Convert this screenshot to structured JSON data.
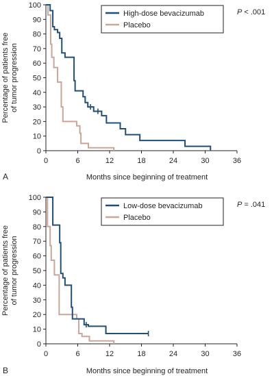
{
  "colors": {
    "primary": "#1f4e79",
    "placebo": "#c9a59a",
    "axis": "#231f20"
  },
  "chart_data": [
    {
      "type": "line",
      "panel_label": "A",
      "xlabel": "Months since beginning of treatment",
      "ylabel_lines": [
        "Percentage of patients free",
        "of tumor progression"
      ],
      "xlim": [
        0,
        36
      ],
      "ylim": [
        0,
        100
      ],
      "xticks": [
        "0",
        "6",
        "12",
        "18",
        "24",
        "30",
        "36"
      ],
      "yticks": [
        "0",
        "10",
        "20",
        "30",
        "40",
        "50",
        "60",
        "70",
        "80",
        "90",
        "100"
      ],
      "grid": false,
      "legend_position": "top-right",
      "pvalue_prefix": "P",
      "pvalue_suffix": " < .001",
      "series": [
        {
          "name": "High-dose bevacizumab",
          "color": "#1f4e79",
          "step": true,
          "points": [
            [
              0,
              100
            ],
            [
              0.8,
              100
            ],
            [
              0.8,
              96
            ],
            [
              1.3,
              96
            ],
            [
              1.3,
              85
            ],
            [
              1.6,
              85
            ],
            [
              1.6,
              83
            ],
            [
              2.2,
              83
            ],
            [
              2.2,
              81
            ],
            [
              2.6,
              81
            ],
            [
              2.6,
              77
            ],
            [
              3.0,
              77
            ],
            [
              3.0,
              67
            ],
            [
              3.6,
              67
            ],
            [
              3.6,
              64
            ],
            [
              5.3,
              64
            ],
            [
              5.3,
              48
            ],
            [
              5.5,
              48
            ],
            [
              5.5,
              41
            ],
            [
              7.0,
              41
            ],
            [
              7.0,
              37
            ],
            [
              7.4,
              37
            ],
            [
              7.4,
              33
            ],
            [
              7.9,
              33
            ],
            [
              7.9,
              30
            ],
            [
              9.0,
              30
            ],
            [
              9.0,
              27
            ],
            [
              10.5,
              27
            ],
            [
              10.5,
              24
            ],
            [
              11.4,
              24
            ],
            [
              11.4,
              19
            ],
            [
              14.0,
              19
            ],
            [
              14.0,
              15
            ],
            [
              15.0,
              15
            ],
            [
              15.0,
              11
            ],
            [
              17.7,
              11
            ],
            [
              17.7,
              7
            ],
            [
              26.2,
              7
            ],
            [
              26.2,
              3
            ],
            [
              31.0,
              3
            ],
            [
              31.0,
              0
            ]
          ],
          "censored": [
            [
              8.4,
              30
            ],
            [
              9.8,
              27
            ]
          ]
        },
        {
          "name": "Placebo",
          "color": "#c9a59a",
          "step": true,
          "points": [
            [
              0,
              100
            ],
            [
              0.4,
              100
            ],
            [
              0.4,
              93
            ],
            [
              0.9,
              93
            ],
            [
              0.9,
              73
            ],
            [
              1.1,
              73
            ],
            [
              1.1,
              64
            ],
            [
              1.5,
              64
            ],
            [
              1.5,
              57
            ],
            [
              2.2,
              57
            ],
            [
              2.2,
              47
            ],
            [
              2.9,
              47
            ],
            [
              2.9,
              30
            ],
            [
              3.2,
              30
            ],
            [
              3.2,
              20
            ],
            [
              5.8,
              20
            ],
            [
              5.8,
              17
            ],
            [
              6.4,
              17
            ],
            [
              6.4,
              12
            ],
            [
              6.6,
              12
            ],
            [
              6.6,
              5
            ],
            [
              8.0,
              5
            ],
            [
              8.0,
              2
            ],
            [
              12.8,
              2
            ],
            [
              12.8,
              0
            ]
          ],
          "censored": []
        }
      ]
    },
    {
      "type": "line",
      "panel_label": "B",
      "xlabel": "Months since beginning of treatment",
      "ylabel_lines": [
        "Percentage of patients free",
        "of tumor progression"
      ],
      "xlim": [
        0,
        36
      ],
      "ylim": [
        0,
        100
      ],
      "xticks": [
        "0",
        "6",
        "12",
        "18",
        "24",
        "30",
        "36"
      ],
      "yticks": [
        "0",
        "10",
        "20",
        "30",
        "40",
        "50",
        "60",
        "70",
        "80",
        "90",
        "100"
      ],
      "grid": false,
      "legend_position": "top-right",
      "pvalue_prefix": "P",
      "pvalue_suffix": " = .041",
      "series": [
        {
          "name": "Low-dose bevacizumab",
          "color": "#1f4e79",
          "step": true,
          "points": [
            [
              0,
              100
            ],
            [
              1.3,
              100
            ],
            [
              1.3,
              81
            ],
            [
              2.6,
              81
            ],
            [
              2.6,
              69
            ],
            [
              2.8,
              69
            ],
            [
              2.8,
              48
            ],
            [
              3.2,
              48
            ],
            [
              3.2,
              45
            ],
            [
              3.6,
              45
            ],
            [
              3.6,
              40
            ],
            [
              4.8,
              40
            ],
            [
              4.8,
              25
            ],
            [
              5.0,
              25
            ],
            [
              5.0,
              17
            ],
            [
              7.2,
              17
            ],
            [
              7.2,
              13
            ],
            [
              8.0,
              13
            ],
            [
              8.0,
              12
            ],
            [
              11.3,
              12
            ],
            [
              11.3,
              7
            ],
            [
              19.3,
              7
            ]
          ],
          "censored": [
            [
              7.6,
              13
            ],
            [
              19.3,
              7
            ]
          ]
        },
        {
          "name": "Placebo",
          "color": "#c9a59a",
          "step": true,
          "points": [
            [
              0,
              100
            ],
            [
              0.3,
              100
            ],
            [
              0.3,
              80
            ],
            [
              0.8,
              80
            ],
            [
              0.8,
              67
            ],
            [
              1.0,
              67
            ],
            [
              1.0,
              57
            ],
            [
              1.6,
              57
            ],
            [
              1.6,
              47
            ],
            [
              2.5,
              47
            ],
            [
              2.5,
              20
            ],
            [
              5.8,
              20
            ],
            [
              5.8,
              17
            ],
            [
              6.2,
              17
            ],
            [
              6.2,
              7
            ],
            [
              6.8,
              7
            ],
            [
              6.8,
              5
            ],
            [
              8.2,
              5
            ],
            [
              8.2,
              2
            ],
            [
              12.8,
              2
            ],
            [
              12.8,
              0
            ]
          ],
          "censored": []
        }
      ]
    }
  ]
}
